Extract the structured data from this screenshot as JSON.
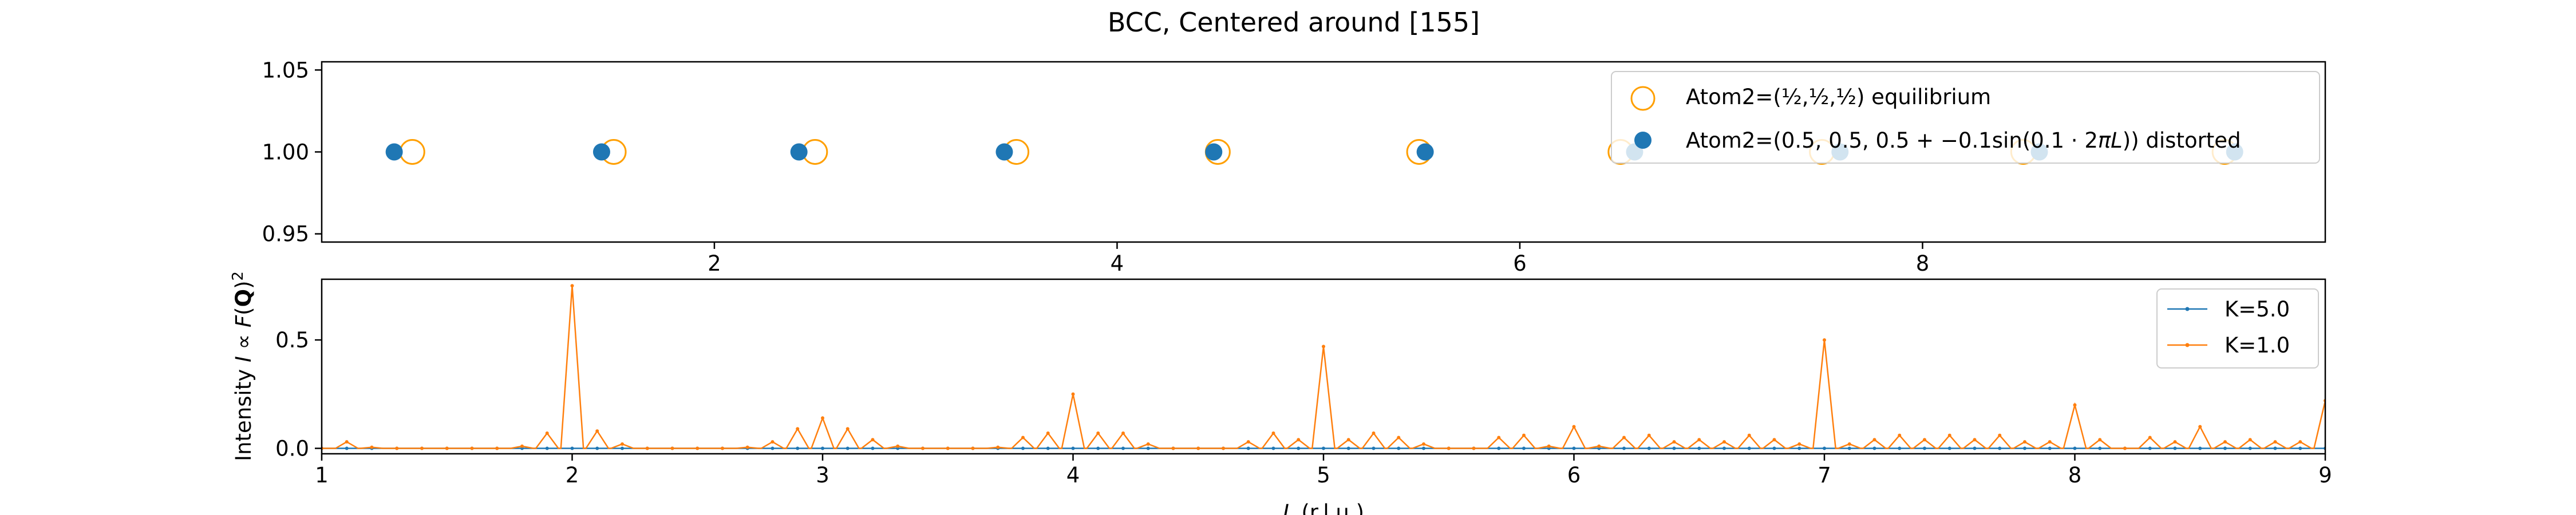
{
  "figure": {
    "title": "BCC, Centered around [155]"
  },
  "chart_data": [
    {
      "type": "scatter",
      "xlim": [
        0.05,
        10.0
      ],
      "ylim": [
        0.945,
        1.055
      ],
      "x_ticks": [
        2,
        4,
        6,
        8
      ],
      "x_tick_labels": [
        "2",
        "4",
        "6",
        "8"
      ],
      "y_ticks": [
        0.95,
        1.0,
        1.05
      ],
      "y_tick_labels": [
        "0.95",
        "1.00",
        "1.05"
      ],
      "xlabel": "",
      "ylabel": "",
      "legend_position": "top-right",
      "series": [
        {
          "name": "Atom2=(½,½,½) equilibrium",
          "marker": "open-circle",
          "color": "#ff9f00",
          "x": [
            0.5,
            1.5,
            2.5,
            3.5,
            4.5,
            5.5,
            6.5,
            7.5,
            8.5,
            9.5
          ],
          "y": [
            1,
            1,
            1,
            1,
            1,
            1,
            1,
            1,
            1,
            1
          ]
        },
        {
          "name": "Atom2=(0.5,0.5,0.5+−0.1sin(0.1·2πL)) distorted",
          "marker": "filled-circle",
          "color": "#1f77b4",
          "x": [
            0.41,
            1.44,
            2.42,
            3.44,
            4.48,
            5.53,
            6.57,
            7.59,
            8.58,
            9.55
          ],
          "y": [
            1,
            1,
            1,
            1,
            1,
            1,
            1,
            1,
            1,
            1
          ]
        }
      ]
    },
    {
      "type": "line",
      "xlim": [
        1,
        9
      ],
      "ylim": [
        -0.025,
        0.78
      ],
      "x_ticks": [
        1,
        2,
        3,
        4,
        5,
        6,
        7,
        8,
        9
      ],
      "x_tick_labels": [
        "1",
        "2",
        "3",
        "4",
        "5",
        "6",
        "7",
        "8",
        "9"
      ],
      "y_ticks": [
        0.0,
        0.5
      ],
      "y_tick_labels": [
        "0.0",
        "0.5"
      ],
      "xlabel": "L (r.l.u.)",
      "ylabel": "Intensity I ∝ F(Q)²",
      "legend_position": "top-right",
      "series": [
        {
          "name": "K=5.0",
          "color": "#1f77b4",
          "x": [
            1.0,
            1.1,
            1.2,
            1.3,
            1.4,
            1.5,
            1.6,
            1.7,
            1.8,
            1.9,
            2.0,
            2.1,
            2.2,
            2.3,
            2.4,
            2.5,
            2.6,
            2.7,
            2.8,
            2.9,
            3.0,
            3.1,
            3.2,
            3.3,
            3.4,
            3.5,
            3.6,
            3.7,
            3.8,
            3.9,
            4.0,
            4.1,
            4.2,
            4.3,
            4.4,
            4.5,
            4.6,
            4.7,
            4.8,
            4.9,
            5.0,
            5.1,
            5.2,
            5.3,
            5.4,
            5.5,
            5.6,
            5.7,
            5.8,
            5.9,
            6.0,
            6.1,
            6.2,
            6.3,
            6.4,
            6.5,
            6.6,
            6.7,
            6.8,
            6.9,
            7.0,
            7.1,
            7.2,
            7.3,
            7.4,
            7.5,
            7.6,
            7.7,
            7.8,
            7.9,
            8.0,
            8.1,
            8.2,
            8.3,
            8.4,
            8.5,
            8.6,
            8.7,
            8.8,
            8.9,
            9.0
          ],
          "y": [
            0.0,
            0.0,
            0.0,
            0.0,
            0.0,
            0.0,
            0.0,
            0.0,
            0.0,
            0.0,
            0.0,
            0.0,
            0.0,
            0.0,
            0.0,
            0.0,
            0.0,
            0.0,
            0.0,
            0.0,
            0.0,
            0.0,
            0.0,
            0.0,
            0.0,
            0.0,
            0.0,
            0.0,
            0.0,
            0.0,
            0.0,
            0.0,
            0.0,
            0.0,
            0.0,
            0.0,
            0.0,
            0.0,
            0.0,
            0.0,
            0.0,
            0.0,
            0.0,
            0.0,
            0.0,
            0.0,
            0.0,
            0.0,
            0.0,
            0.0,
            0.0,
            0.0,
            0.0,
            0.0,
            0.0,
            0.0,
            0.0,
            0.0,
            0.0,
            0.0,
            0.0,
            0.0,
            0.0,
            0.0,
            0.0,
            0.0,
            0.0,
            0.0,
            0.0,
            0.0,
            0.0,
            0.0,
            0.0,
            0.0,
            0.0,
            0.0,
            0.0,
            0.0,
            0.0,
            0.0,
            0.0
          ]
        },
        {
          "name": "K=1.0",
          "color": "#ff7f0e",
          "x": [
            1.0,
            1.1,
            1.2,
            1.3,
            1.4,
            1.5,
            1.6,
            1.7,
            1.8,
            1.9,
            2.0,
            2.1,
            2.2,
            2.3,
            2.4,
            2.5,
            2.6,
            2.7,
            2.8,
            2.9,
            3.0,
            3.1,
            3.2,
            3.3,
            3.4,
            3.5,
            3.6,
            3.7,
            3.8,
            3.9,
            4.0,
            4.1,
            4.2,
            4.3,
            4.4,
            4.5,
            4.6,
            4.7,
            4.8,
            4.9,
            5.0,
            5.1,
            5.2,
            5.3,
            5.4,
            5.5,
            5.6,
            5.7,
            5.8,
            5.9,
            6.0,
            6.1,
            6.2,
            6.3,
            6.4,
            6.5,
            6.6,
            6.7,
            6.8,
            6.9,
            7.0,
            7.1,
            7.2,
            7.3,
            7.4,
            7.5,
            7.6,
            7.7,
            7.8,
            7.9,
            8.0,
            8.1,
            8.2,
            8.3,
            8.4,
            8.5,
            8.6,
            8.7,
            8.8,
            8.9,
            9.0
          ],
          "y": [
            0.0,
            0.03,
            0.005,
            0.0,
            0.0,
            0.0,
            0.0,
            0.0,
            0.01,
            0.07,
            0.75,
            0.08,
            0.02,
            0.0,
            0.0,
            0.0,
            0.0,
            0.005,
            0.03,
            0.09,
            0.14,
            0.09,
            0.04,
            0.01,
            0.0,
            0.0,
            0.0,
            0.005,
            0.05,
            0.07,
            0.25,
            0.07,
            0.07,
            0.02,
            0.0,
            0.0,
            0.0,
            0.03,
            0.07,
            0.04,
            0.47,
            0.04,
            0.07,
            0.05,
            0.02,
            0.0,
            0.0,
            0.05,
            0.06,
            0.01,
            0.1,
            0.01,
            0.05,
            0.06,
            0.03,
            0.04,
            0.03,
            0.06,
            0.04,
            0.02,
            0.5,
            0.02,
            0.04,
            0.06,
            0.04,
            0.06,
            0.04,
            0.06,
            0.03,
            0.03,
            0.2,
            0.04,
            0.0,
            0.05,
            0.03,
            0.1,
            0.03,
            0.04,
            0.03,
            0.03,
            0.22
          ]
        }
      ]
    }
  ]
}
